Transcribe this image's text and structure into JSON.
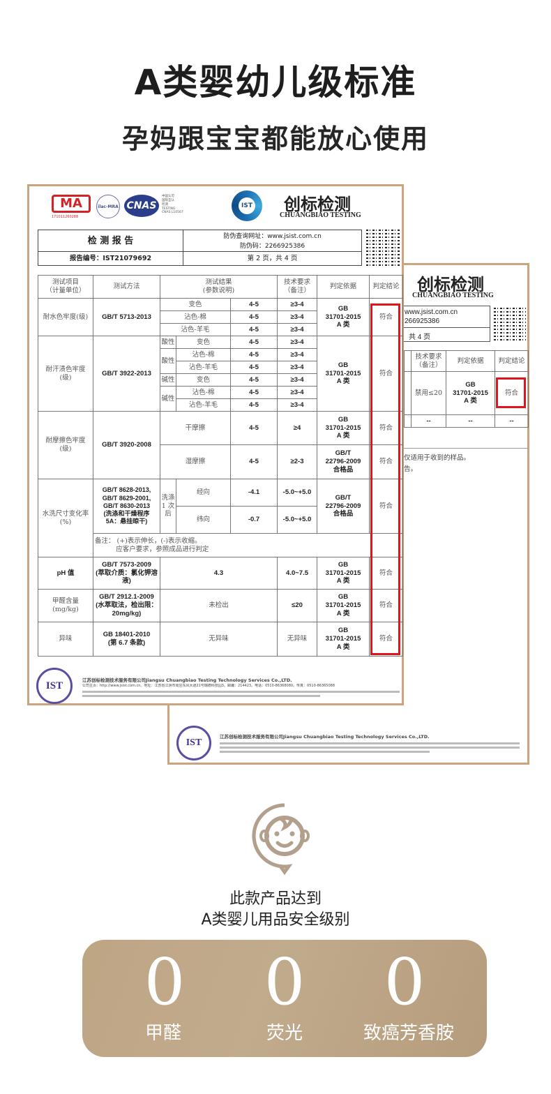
{
  "header": {
    "title": "A类婴幼儿级标准",
    "subtitle": "孕妈跟宝宝都能放心使用"
  },
  "report": {
    "logos": {
      "cma": "MA",
      "cma_number": "171011260288",
      "ilac": "ilac-MRA",
      "cnas": "CNAS",
      "cnas_text": [
        "中国认可",
        "国际互认",
        "检测",
        "TESTING",
        "CNAS L10567"
      ],
      "ist": "IST"
    },
    "brand_zh": "创标检测",
    "brand_en": "CHUANGBIAO TESTING",
    "doc_title": "检 测 报 告",
    "verify_url": "防伪查询网址：www.jsist.com.cn",
    "verify_code": "防伪码：2266925386",
    "report_no": "报告编号：IST21079692",
    "page": "第 2 页，共 4 页",
    "columns": [
      "测试项目\n（计量单位）",
      "测试方法",
      "测试结果\n(参数说明)",
      "技术要求\n（备注）",
      "判定依据",
      "判定结论"
    ],
    "rows": {
      "water": {
        "item": "耐水色牢度(级)",
        "method": "GB/T 5713-2013",
        "sub": [
          [
            "变色",
            "4-5",
            "≥3-4"
          ],
          [
            "沾色-棉",
            "4-5",
            "≥3-4"
          ],
          [
            "沾色-羊毛",
            "4-5",
            "≥3-4"
          ]
        ],
        "basis": "GB\n31701-2015\nA 类",
        "result": "符合"
      },
      "sweat": {
        "item": "耐汗渍色牢度\n(级)",
        "method": "GB/T 3922-2013",
        "acid": "酸性",
        "alkali": "碱性",
        "sub": [
          [
            "变色",
            "4-5",
            "≥3-4"
          ],
          [
            "沾色-棉",
            "4-5",
            "≥3-4"
          ],
          [
            "沾色-羊毛",
            "4-5",
            "≥3-4"
          ],
          [
            "变色",
            "4-5",
            "≥3-4"
          ],
          [
            "沾色-棉",
            "4-5",
            "≥3-4"
          ],
          [
            "沾色-羊毛",
            "4-5",
            "≥3-4"
          ]
        ],
        "basis": "GB\n31701-2015\nA 类",
        "result": "符合"
      },
      "rub": {
        "item": "耐摩擦色牢度\n(级)",
        "method": "GB/T 3920-2008",
        "sub": [
          [
            "干摩擦",
            "4-5",
            "≥4",
            "GB\n31701-2015\nA 类",
            "符合"
          ],
          [
            "湿摩擦",
            "4-5",
            "≥2-3",
            "GB/T\n22796-2009\n合格品",
            "符合"
          ]
        ]
      },
      "wash": {
        "item": "水洗尺寸变化率\n(%)",
        "method": "GB/T 8628-2013,\nGB/T 8629-2001,\nGB/T 8630-2013\n(洗涤和干燥程序\n5A：悬挂晾干)",
        "cond": "洗涤\n1 次\n后",
        "sub": [
          [
            "经向",
            "-4.1",
            "-5.0~+5.0"
          ],
          [
            "纬向",
            "-0.7",
            "-5.0~+5.0"
          ]
        ],
        "basis": "GB/T\n22796-2009\n合格品",
        "result": "符合",
        "note": "备注： (+)表示伸长，(-)表示收缩。\n          应客户要求，参照成品进行判定"
      },
      "ph": {
        "item": "pH 值",
        "method": "GB/T 7573-2009\n(萃取介质：氯化钾溶\n液)",
        "value": "4.3",
        "req": "4.0~7.5",
        "basis": "GB\n31701-2015\nA 类",
        "result": "符合"
      },
      "formaldehyde": {
        "item": "甲醛含量\n(mg/kg)",
        "method": "GB/T 2912.1-2009\n(水萃取法，检出限：\n20mg/kg)",
        "value": "未检出",
        "req": "≤20",
        "basis": "GB\n31701-2015\nA 类",
        "result": "符合"
      },
      "odor": {
        "item": "异味",
        "method": "GB 18401-2010\n(第 6.7 条款)",
        "value": "无异味",
        "req": "无异味",
        "basis": "GB\n31701-2015\nA 类",
        "result": "符合"
      }
    },
    "footer_company": "江苏创标检测技术服务有限公司Jiangsu Chuangbiao Testing Technology Services Co.,LTD.",
    "footer_contact": "公司主页：http://www.jsist.com.cn。地址：江苏省江阴市周庄东风大道21号瑞德科技园3。邮编：214423。电话：0510-86368080。传真：0510-86365088"
  },
  "back_report": {
    "brand_zh": "创标检测",
    "brand_en": "CHUANGBIAO TESTING",
    "url_fragment": "www.jsist.com.cn",
    "code_fragment": "266925386",
    "page_fragment": "共 4 页",
    "columns": [
      "技术要求\n（备注）",
      "判定依据",
      "判定结论"
    ],
    "row1": [
      "禁用≤20",
      "GB\n31701-2015\nA 类",
      "符合"
    ],
    "row2": [
      "--",
      "--",
      "--"
    ],
    "note1": "仅适用于收到的样品。",
    "note2": "告。"
  },
  "claim": {
    "line1": "此款产品达到",
    "line2": "A类婴儿用品安全级别"
  },
  "zeros": [
    {
      "value": "0",
      "label": "甲醛"
    },
    {
      "value": "0",
      "label": "荧光"
    },
    {
      "value": "0",
      "label": "致癌芳香胺"
    }
  ],
  "colors": {
    "frame": "#c9a57f",
    "highlight": "#e0141a",
    "panel": "#bea584",
    "icon": "#b2a08d"
  },
  "icons": [
    "baby-face-icon",
    "qr-code-icon",
    "ist-logo-icon",
    "cma-logo-icon",
    "cnas-logo-icon"
  ]
}
